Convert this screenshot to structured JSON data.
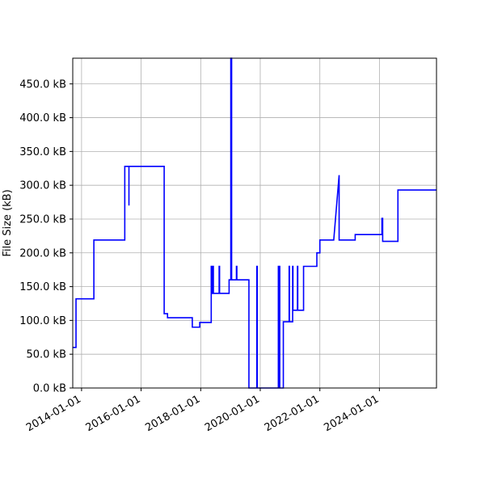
{
  "chart_data": {
    "type": "line",
    "title": "",
    "xlabel": "",
    "ylabel": "File Size (kB)",
    "grid": true,
    "x_range": [
      "2013-09-15",
      "2025-12-01"
    ],
    "ylim": [
      0,
      488
    ],
    "y_ticks": [
      0,
      50,
      100,
      150,
      200,
      250,
      300,
      350,
      400,
      450
    ],
    "y_tick_labels": [
      "0.0 kB",
      "50.0 kB",
      "100.0 kB",
      "150.0 kB",
      "200.0 kB",
      "250.0 kB",
      "300.0 kB",
      "350.0 kB",
      "400.0 kB",
      "450.0 kB"
    ],
    "x_ticks": [
      "2014-01-01",
      "2016-01-01",
      "2018-01-01",
      "2020-01-01",
      "2022-01-01",
      "2024-01-01"
    ],
    "x_tick_labels": [
      "2014-01-01",
      "2016-01-01",
      "2018-01-01",
      "2020-01-01",
      "2022-01-01",
      "2024-01-01"
    ],
    "series": [
      {
        "color": "#0000ff",
        "points": [
          [
            "2013-09-15",
            60
          ],
          [
            "2013-10-25",
            60
          ],
          [
            "2013-10-25",
            132
          ],
          [
            "2014-06-01",
            132
          ],
          [
            "2014-06-01",
            219
          ],
          [
            "2015-06-15",
            219
          ],
          [
            "2015-06-15",
            328
          ],
          [
            "2015-08-05",
            328
          ],
          [
            "2015-08-05",
            270
          ],
          [
            "2015-08-05",
            328
          ],
          [
            "2016-10-10",
            328
          ],
          [
            "2016-10-10",
            110
          ],
          [
            "2016-11-20",
            110
          ],
          [
            "2016-11-20",
            104
          ],
          [
            "2017-09-20",
            104
          ],
          [
            "2017-09-20",
            90
          ],
          [
            "2017-12-20",
            90
          ],
          [
            "2017-12-20",
            97
          ],
          [
            "2018-05-10",
            97
          ],
          [
            "2018-05-10",
            180
          ],
          [
            "2018-05-20",
            180
          ],
          [
            "2018-05-20",
            140
          ],
          [
            "2018-05-28",
            140
          ],
          [
            "2018-05-28",
            180
          ],
          [
            "2018-06-05",
            180
          ],
          [
            "2018-06-05",
            140
          ],
          [
            "2018-08-15",
            140
          ],
          [
            "2018-08-15",
            180
          ],
          [
            "2018-08-20",
            180
          ],
          [
            "2018-08-20",
            140
          ],
          [
            "2018-12-15",
            140
          ],
          [
            "2018-12-15",
            160
          ],
          [
            "2019-01-05",
            160
          ],
          [
            "2019-01-05",
            488
          ],
          [
            "2019-01-15",
            488
          ],
          [
            "2019-01-15",
            160
          ],
          [
            "2019-03-15",
            160
          ],
          [
            "2019-03-15",
            180
          ],
          [
            "2019-03-20",
            180
          ],
          [
            "2019-03-20",
            160
          ],
          [
            "2019-08-15",
            160
          ],
          [
            "2019-08-15",
            0
          ],
          [
            "2019-11-20",
            0
          ],
          [
            "2019-11-20",
            180
          ],
          [
            "2019-11-25",
            180
          ],
          [
            "2019-11-25",
            0
          ],
          [
            "2020-08-10",
            0
          ],
          [
            "2020-08-10",
            180
          ],
          [
            "2020-08-15",
            180
          ],
          [
            "2020-08-15",
            0
          ],
          [
            "2020-08-22",
            0
          ],
          [
            "2020-08-22",
            180
          ],
          [
            "2020-08-27",
            180
          ],
          [
            "2020-08-27",
            0
          ],
          [
            "2020-10-10",
            0
          ],
          [
            "2020-10-10",
            98
          ],
          [
            "2020-12-20",
            98
          ],
          [
            "2020-12-20",
            180
          ],
          [
            "2020-12-25",
            180
          ],
          [
            "2020-12-25",
            98
          ],
          [
            "2021-02-01",
            98
          ],
          [
            "2021-02-01",
            180
          ],
          [
            "2021-02-05",
            180
          ],
          [
            "2021-02-05",
            115
          ],
          [
            "2021-04-01",
            115
          ],
          [
            "2021-04-01",
            180
          ],
          [
            "2021-04-05",
            180
          ],
          [
            "2021-04-05",
            115
          ],
          [
            "2021-06-15",
            115
          ],
          [
            "2021-06-15",
            180
          ],
          [
            "2021-11-25",
            180
          ],
          [
            "2021-11-25",
            200
          ],
          [
            "2022-01-01",
            200
          ],
          [
            "2022-01-01",
            219
          ],
          [
            "2022-06-20",
            219
          ],
          [
            "2022-08-25",
            315
          ],
          [
            "2022-08-25",
            219
          ],
          [
            "2023-03-10",
            219
          ],
          [
            "2023-03-10",
            227
          ],
          [
            "2024-02-01",
            227
          ],
          [
            "2024-02-01",
            251
          ],
          [
            "2024-02-10",
            251
          ],
          [
            "2024-02-10",
            217
          ],
          [
            "2024-08-15",
            217
          ],
          [
            "2024-08-15",
            293
          ],
          [
            "2025-12-01",
            293
          ]
        ]
      }
    ]
  }
}
